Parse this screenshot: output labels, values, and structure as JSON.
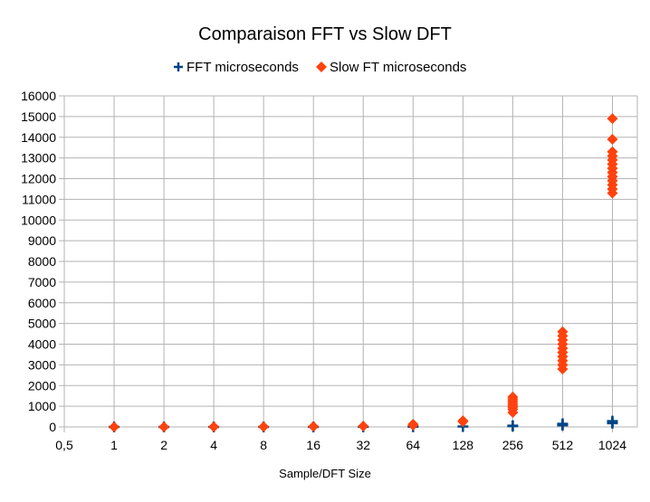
{
  "chart_data": {
    "type": "scatter",
    "title": "Comparaison FFT vs Slow DFT",
    "xlabel": "Sample/DFT Size",
    "ylabel": "",
    "x_categories": [
      "0,5",
      "1",
      "2",
      "4",
      "8",
      "16",
      "32",
      "64",
      "128",
      "256",
      "512",
      "1024"
    ],
    "ylim": [
      0,
      16000
    ],
    "ytick_step": 1000,
    "grid": true,
    "legend_position": "top",
    "series": [
      {
        "name": "FFT microseconds",
        "marker": "plus",
        "color": "#004586",
        "points": [
          {
            "x": "1",
            "y": 0
          },
          {
            "x": "2",
            "y": 0
          },
          {
            "x": "4",
            "y": 0
          },
          {
            "x": "8",
            "y": 0
          },
          {
            "x": "16",
            "y": 0
          },
          {
            "x": "32",
            "y": 5
          },
          {
            "x": "64",
            "y": 10
          },
          {
            "x": "128",
            "y": 20
          },
          {
            "x": "256",
            "y": 40
          },
          {
            "x": "256",
            "y": 60
          },
          {
            "x": "512",
            "y": 80
          },
          {
            "x": "512",
            "y": 120
          },
          {
            "x": "512",
            "y": 150
          },
          {
            "x": "1024",
            "y": 180
          },
          {
            "x": "1024",
            "y": 230
          },
          {
            "x": "1024",
            "y": 280
          }
        ]
      },
      {
        "name": "Slow FT microseconds",
        "marker": "diamond",
        "color": "#ff420e",
        "points": [
          {
            "x": "1",
            "y": 0
          },
          {
            "x": "2",
            "y": 0
          },
          {
            "x": "4",
            "y": 5
          },
          {
            "x": "8",
            "y": 10
          },
          {
            "x": "16",
            "y": 20
          },
          {
            "x": "32",
            "y": 40
          },
          {
            "x": "64",
            "y": 80
          },
          {
            "x": "64",
            "y": 130
          },
          {
            "x": "128",
            "y": 250
          },
          {
            "x": "128",
            "y": 300
          },
          {
            "x": "256",
            "y": 700
          },
          {
            "x": "256",
            "y": 850
          },
          {
            "x": "256",
            "y": 950
          },
          {
            "x": "256",
            "y": 1050
          },
          {
            "x": "256",
            "y": 1150
          },
          {
            "x": "256",
            "y": 1250
          },
          {
            "x": "256",
            "y": 1350
          },
          {
            "x": "256",
            "y": 1450
          },
          {
            "x": "512",
            "y": 2800
          },
          {
            "x": "512",
            "y": 3000
          },
          {
            "x": "512",
            "y": 3200
          },
          {
            "x": "512",
            "y": 3400
          },
          {
            "x": "512",
            "y": 3600
          },
          {
            "x": "512",
            "y": 3800
          },
          {
            "x": "512",
            "y": 4000
          },
          {
            "x": "512",
            "y": 4200
          },
          {
            "x": "512",
            "y": 4400
          },
          {
            "x": "512",
            "y": 4600
          },
          {
            "x": "1024",
            "y": 11300
          },
          {
            "x": "1024",
            "y": 11500
          },
          {
            "x": "1024",
            "y": 11700
          },
          {
            "x": "1024",
            "y": 11900
          },
          {
            "x": "1024",
            "y": 12100
          },
          {
            "x": "1024",
            "y": 12300
          },
          {
            "x": "1024",
            "y": 12500
          },
          {
            "x": "1024",
            "y": 12700
          },
          {
            "x": "1024",
            "y": 12900
          },
          {
            "x": "1024",
            "y": 13100
          },
          {
            "x": "1024",
            "y": 13300
          },
          {
            "x": "1024",
            "y": 13900
          },
          {
            "x": "1024",
            "y": 14900
          }
        ]
      }
    ]
  }
}
